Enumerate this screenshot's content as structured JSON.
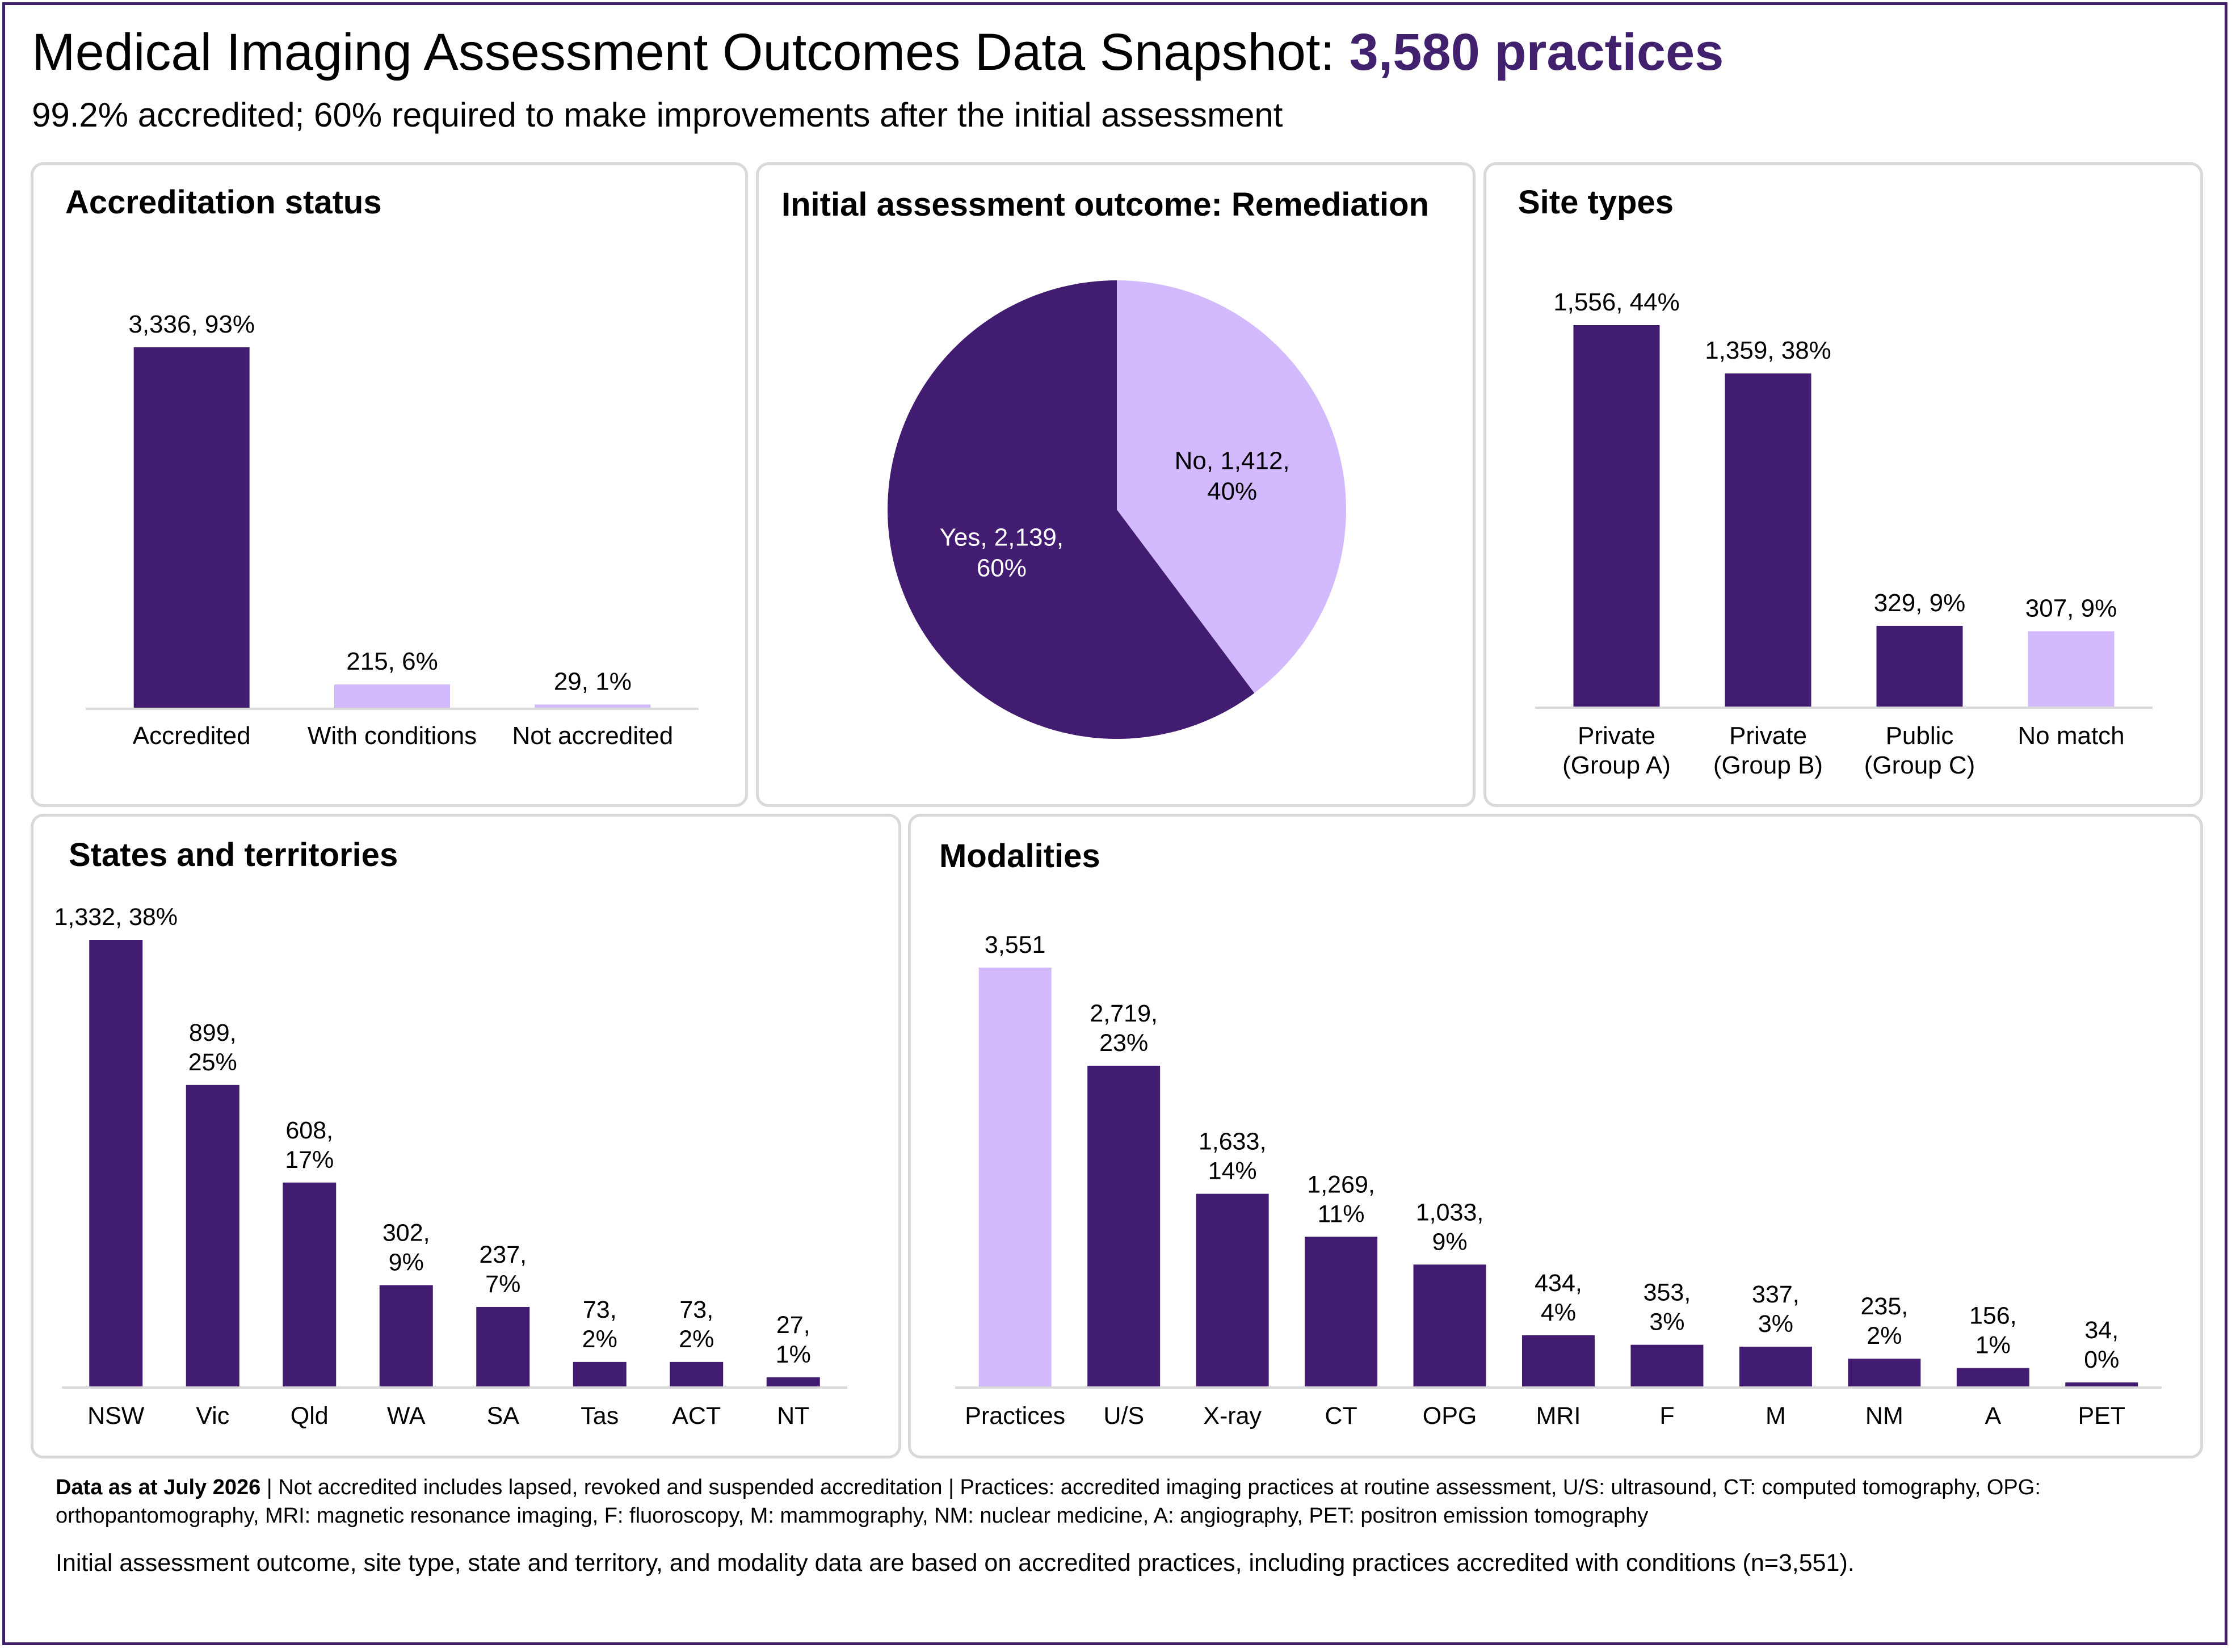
{
  "title_main": "Medical Imaging Assessment Outcomes Data Snapshot: ",
  "title_accent": "3,580 practices",
  "subtitle": "99.2% accredited; 60% required to make improvements after the initial assessment",
  "colors": {
    "dark": "#411c70",
    "light": "#d3baff",
    "border": "#d9d9d9",
    "frame": "#3f1f66",
    "accent_text": "#41216e"
  },
  "footnote": {
    "bold": "Data as at July 2026",
    "text": " | Not accredited includes lapsed, revoked and suspended accreditation | Practices: accredited imaging practices at routine assessment, U/S: ultrasound, CT: computed tomography, OPG: orthopantomography, MRI: magnetic resonance imaging, F: fluoroscopy, M: mammography, NM: nuclear medicine, A: angiography, PET: positron emission tomography",
    "note": "Initial assessment outcome, site type, state and territory, and modality data are based on accredited practices, including practices accredited with conditions (n=3,551)."
  },
  "chart_data": [
    {
      "id": "accreditation",
      "type": "bar",
      "title": "Accreditation status",
      "categories": [
        [
          "Accredited"
        ],
        [
          "With conditions"
        ],
        [
          "Not accredited"
        ]
      ],
      "values": [
        3336,
        215,
        29
      ],
      "labels": [
        [
          "3,336, 93%"
        ],
        [
          "215, 6%"
        ],
        [
          "29, 1%"
        ]
      ],
      "colors": [
        "dark",
        "light",
        "light"
      ],
      "ylim": [
        0,
        3336
      ]
    },
    {
      "id": "remediation",
      "type": "pie",
      "title": "Initial assessment outcome: Remediation",
      "slices": [
        {
          "name": "No",
          "value": 1412,
          "percent": 40,
          "color": "light",
          "label": [
            "No, 1,412,",
            "40%"
          ]
        },
        {
          "name": "Yes",
          "value": 2139,
          "percent": 60,
          "color": "dark",
          "label": [
            "Yes, 2,139,",
            "60%"
          ]
        }
      ]
    },
    {
      "id": "sites",
      "type": "bar",
      "title": "Site types",
      "categories": [
        [
          "Private",
          "(Group A)"
        ],
        [
          "Private",
          "(Group B)"
        ],
        [
          "Public",
          "(Group C)"
        ],
        [
          "No match"
        ]
      ],
      "values": [
        1556,
        1359,
        329,
        307
      ],
      "labels": [
        [
          "1,556, 44%"
        ],
        [
          "1,359, 38%"
        ],
        [
          "329, 9%"
        ],
        [
          "307, 9%"
        ]
      ],
      "colors": [
        "dark",
        "dark",
        "dark",
        "light"
      ],
      "ylim": [
        0,
        1556
      ]
    },
    {
      "id": "states",
      "type": "bar",
      "title": "States and territories",
      "categories": [
        [
          "NSW"
        ],
        [
          "Vic"
        ],
        [
          "Qld"
        ],
        [
          "WA"
        ],
        [
          "SA"
        ],
        [
          "Tas"
        ],
        [
          "ACT"
        ],
        [
          "NT"
        ]
      ],
      "values": [
        1332,
        899,
        608,
        302,
        237,
        73,
        73,
        27
      ],
      "labels": [
        [
          "1,332, 38%"
        ],
        [
          "899,",
          "25%"
        ],
        [
          "608,",
          "17%"
        ],
        [
          "302,",
          "9%"
        ],
        [
          "237,",
          "7%"
        ],
        [
          "73,",
          "2%"
        ],
        [
          "73,",
          "2%"
        ],
        [
          "27,",
          "1%"
        ]
      ],
      "colors": [
        "dark",
        "dark",
        "dark",
        "dark",
        "dark",
        "dark",
        "dark",
        "dark"
      ],
      "ylim": [
        0,
        1332
      ]
    },
    {
      "id": "modalities",
      "type": "bar",
      "title": "Modalities",
      "categories": [
        [
          "Practices"
        ],
        [
          "U/S"
        ],
        [
          "X-ray"
        ],
        [
          "CT"
        ],
        [
          "OPG"
        ],
        [
          "MRI"
        ],
        [
          "F"
        ],
        [
          "M"
        ],
        [
          "NM"
        ],
        [
          "A"
        ],
        [
          "PET"
        ]
      ],
      "values": [
        3551,
        2719,
        1633,
        1269,
        1033,
        434,
        353,
        337,
        235,
        156,
        34
      ],
      "labels": [
        [
          "3,551"
        ],
        [
          "2,719,",
          "23%"
        ],
        [
          "1,633,",
          "14%"
        ],
        [
          "1,269,",
          "11%"
        ],
        [
          "1,033,",
          "9%"
        ],
        [
          "434,",
          "4%"
        ],
        [
          "353,",
          "3%"
        ],
        [
          "337,",
          "3%"
        ],
        [
          "235,",
          "2%"
        ],
        [
          "156,",
          "1%"
        ],
        [
          "34,",
          "0%"
        ]
      ],
      "colors": [
        "light",
        "dark",
        "dark",
        "dark",
        "dark",
        "dark",
        "dark",
        "dark",
        "dark",
        "dark",
        "dark"
      ],
      "ylim": [
        0,
        3551
      ]
    }
  ]
}
